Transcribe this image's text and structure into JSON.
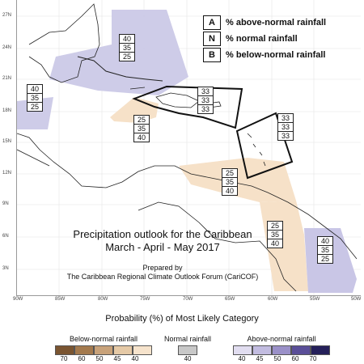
{
  "map": {
    "lat_labels": [
      "27N",
      "24N",
      "21N",
      "18N",
      "15N",
      "12N",
      "9N",
      "6N",
      "3N"
    ],
    "lon_labels": [
      "90W",
      "85W",
      "80W",
      "75W",
      "70W",
      "65W",
      "60W",
      "55W",
      "50W"
    ],
    "legend": [
      {
        "key": "A",
        "text": "% above-normal rainfall"
      },
      {
        "key": "N",
        "text": "% normal rainfall"
      },
      {
        "key": "B",
        "text": "% below-normal rainfall"
      }
    ],
    "regions": [
      {
        "id": "gulf-bahamas",
        "category": "above",
        "values": [
          "40",
          "35",
          "25"
        ]
      },
      {
        "id": "central-america-east",
        "category": "above",
        "values": [
          "40",
          "35",
          "25"
        ]
      },
      {
        "id": "jamaica",
        "category": "below",
        "values": [
          "25",
          "35",
          "40"
        ]
      },
      {
        "id": "greater-antilles",
        "category": "equal",
        "values": [
          "33",
          "33",
          "33"
        ]
      },
      {
        "id": "lesser-antilles",
        "category": "equal",
        "values": [
          "33",
          "33",
          "33"
        ]
      },
      {
        "id": "south-caribbean",
        "category": "below",
        "values": [
          "25",
          "35",
          "40"
        ]
      },
      {
        "id": "guyana",
        "category": "below",
        "values": [
          "25",
          "35",
          "40"
        ]
      },
      {
        "id": "suriname-fg",
        "category": "above",
        "values": [
          "40",
          "35",
          "25"
        ]
      }
    ],
    "title_line1": "Precipitation outlook for the Caribbean",
    "title_line2": "March - April - May 2017",
    "prepared_by": "Prepared by",
    "forum": "The Caribbean Regional Climate Outlook Forum (CariCOF)"
  },
  "scale": {
    "title": "Probability (%) of Most Likely Category",
    "below": {
      "label": "Below-normal rainfall",
      "ticks": [
        "70",
        "60",
        "50",
        "45",
        "40"
      ],
      "colors": [
        "#7a5531",
        "#a47a4e",
        "#c8a27a",
        "#e5c9a6",
        "#f6e3cc"
      ]
    },
    "normal": {
      "label": "Normal rainfall",
      "ticks": [
        "40"
      ],
      "colors": [
        "#c8c8c8"
      ]
    },
    "above": {
      "label": "Above-normal rainfall",
      "ticks": [
        "40",
        "45",
        "50",
        "60",
        "70"
      ],
      "colors": [
        "#e1ddf0",
        "#c2bce0",
        "#9a90c8",
        "#5a4e98",
        "#25205a"
      ]
    }
  },
  "colors": {
    "above": "#c9c6e6",
    "below": "#f6e1c8",
    "land": "#ffffff",
    "coast": "#222222"
  }
}
